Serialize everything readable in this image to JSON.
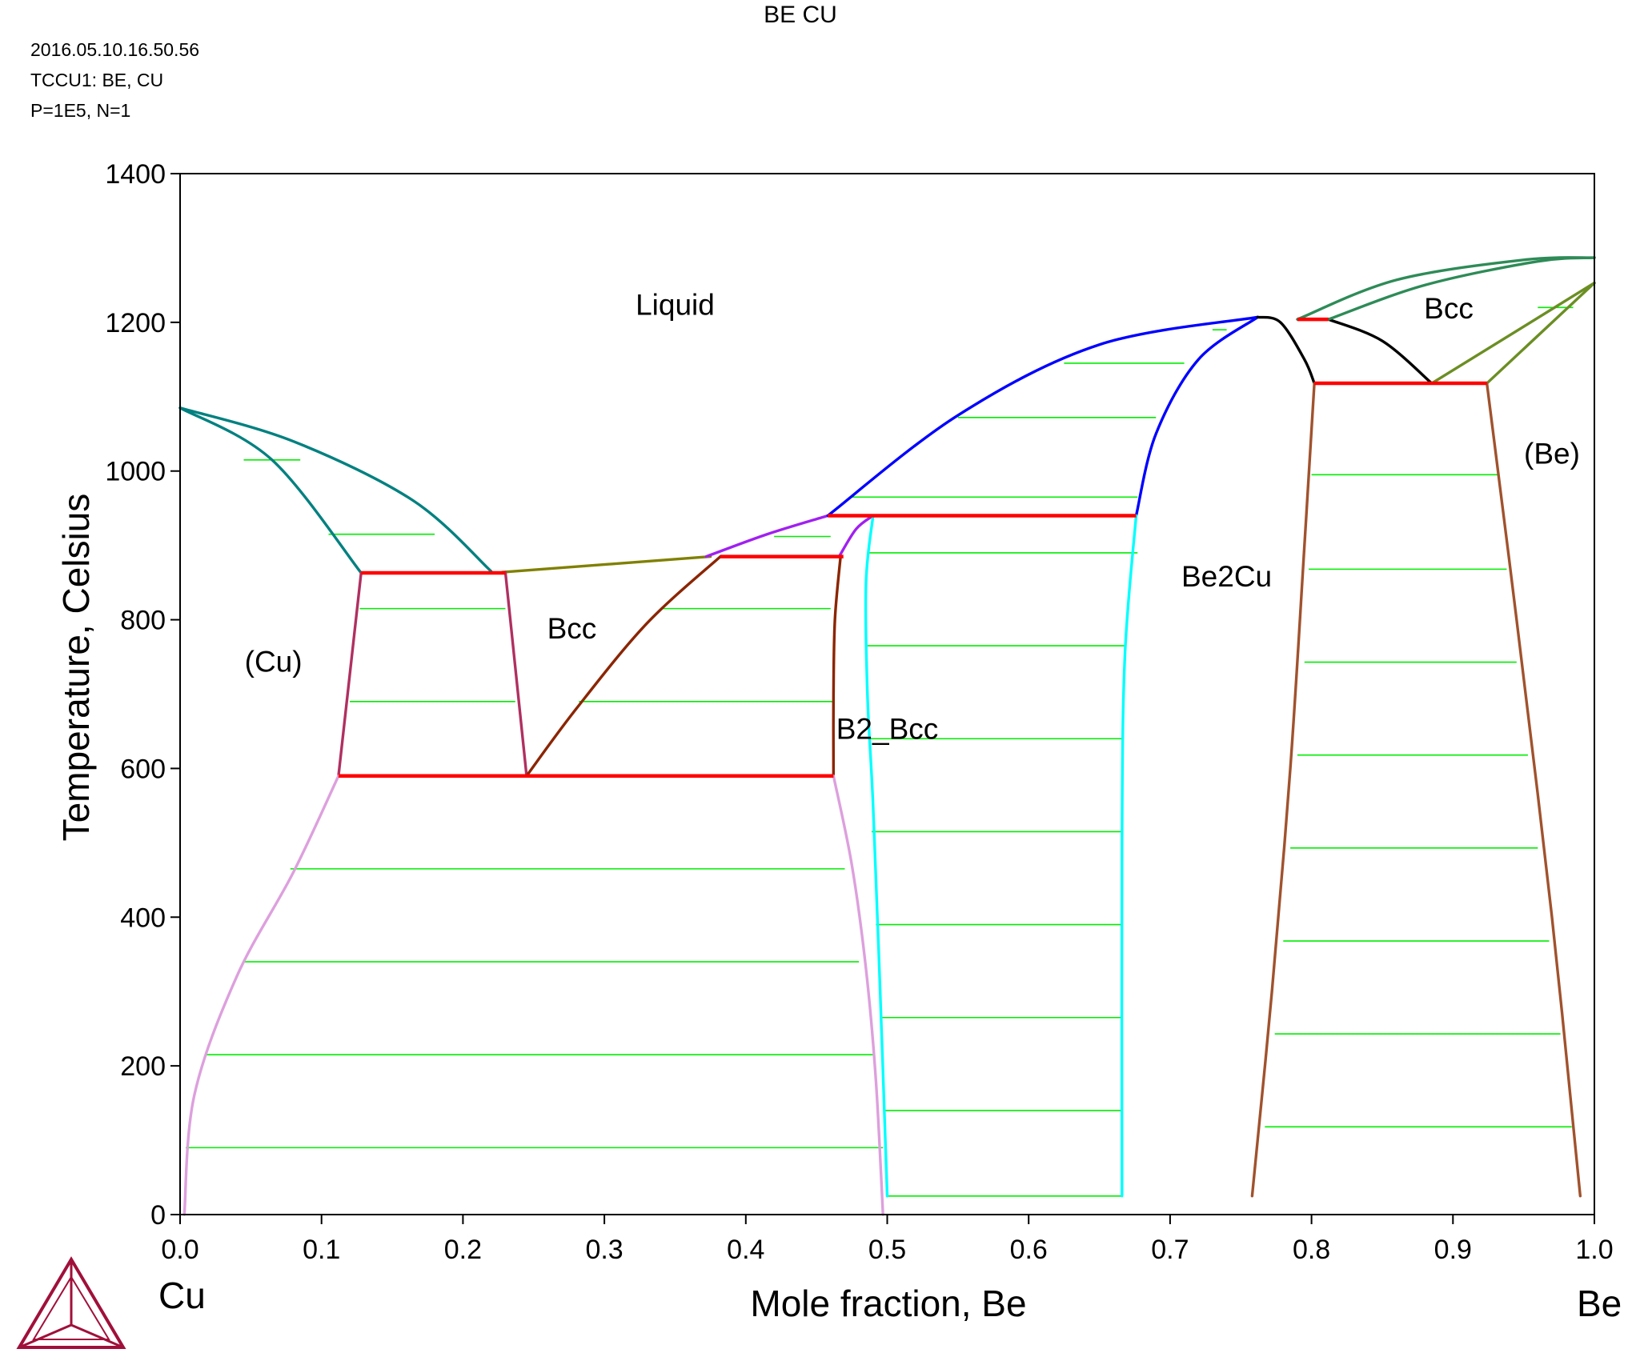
{
  "header": {
    "title": "BE CU",
    "meta_lines": [
      "2016.05.10.16.50.56",
      "TCCU1: BE, CU",
      "P=1E5, N=1"
    ]
  },
  "chart_data": {
    "type": "line",
    "title": "BE CU",
    "xlabel": "Mole fraction, Be",
    "ylabel": "Temperature, Celsius",
    "xlim": [
      0,
      1
    ],
    "ylim": [
      0,
      1400
    ],
    "xticks": [
      0.0,
      0.1,
      0.2,
      0.3,
      0.4,
      0.5,
      0.6,
      0.7,
      0.8,
      0.9,
      1.0
    ],
    "xtick_labels": [
      "0.0",
      "0.1",
      "0.2",
      "0.3",
      "0.4",
      "0.5",
      "0.6",
      "0.7",
      "0.8",
      "0.9",
      "1.0"
    ],
    "yticks": [
      0,
      200,
      400,
      600,
      800,
      1000,
      1200,
      1400
    ],
    "ytick_labels": [
      "0",
      "200",
      "400",
      "600",
      "800",
      "1000",
      "1200",
      "1400"
    ],
    "x_end_labels": {
      "left": "Cu",
      "right": "Be"
    },
    "grid": false,
    "region_labels": [
      {
        "text": "Liquid",
        "x": 0.35,
        "y": 1210
      },
      {
        "text": "(Cu)",
        "x": 0.066,
        "y": 730
      },
      {
        "text": "Bcc",
        "x": 0.277,
        "y": 775
      },
      {
        "text": "B2_Bcc",
        "x": 0.5,
        "y": 640
      },
      {
        "text": "Be2Cu",
        "x": 0.74,
        "y": 845
      },
      {
        "text": "Bcc",
        "x": 0.897,
        "y": 1205
      },
      {
        "text": "(Be)",
        "x": 0.97,
        "y": 1010
      }
    ],
    "curves": [
      {
        "color": "#008080",
        "points": [
          [
            0,
            1085
          ],
          [
            0.065,
            1015
          ],
          [
            0.128,
            863
          ]
        ]
      },
      {
        "color": "#008080",
        "points": [
          [
            0,
            1085
          ],
          [
            0.08,
            1040
          ],
          [
            0.165,
            960
          ],
          [
            0.22,
            865
          ]
        ]
      },
      {
        "color": "#808000",
        "points": [
          [
            0.228,
            864
          ],
          [
            0.375,
            885
          ]
        ]
      },
      {
        "color": "#B03060",
        "points": [
          [
            0.128,
            863
          ],
          [
            0.112,
            590
          ]
        ]
      },
      {
        "color": "#B03060",
        "points": [
          [
            0.23,
            864
          ],
          [
            0.245,
            590
          ]
        ]
      },
      {
        "color": "#DDA0DD",
        "points": [
          [
            0.112,
            590
          ],
          [
            0.08,
            460
          ],
          [
            0.04,
            320
          ],
          [
            0.01,
            160
          ],
          [
            0.003,
            0
          ]
        ]
      },
      {
        "color": "#8B2500",
        "points": [
          [
            0.245,
            590
          ],
          [
            0.28,
            680
          ],
          [
            0.33,
            795
          ],
          [
            0.382,
            885
          ]
        ]
      },
      {
        "color": "#A020F0",
        "points": [
          [
            0.372,
            885
          ],
          [
            0.415,
            915
          ],
          [
            0.458,
            940
          ]
        ]
      },
      {
        "color": "#A020F0",
        "points": [
          [
            0.466,
            885
          ],
          [
            0.478,
            922
          ],
          [
            0.49,
            940
          ]
        ]
      },
      {
        "color": "#8B2500",
        "points": [
          [
            0.467,
            885
          ],
          [
            0.463,
            800
          ],
          [
            0.462,
            700
          ],
          [
            0.462,
            590
          ]
        ]
      },
      {
        "color": "#DDA0DD",
        "points": [
          [
            0.462,
            590
          ],
          [
            0.475,
            470
          ],
          [
            0.485,
            330
          ],
          [
            0.492,
            180
          ],
          [
            0.497,
            0
          ]
        ]
      },
      {
        "color": "#00FFFF",
        "points": [
          [
            0.49,
            940
          ],
          [
            0.485,
            850
          ],
          [
            0.486,
            700
          ],
          [
            0.49,
            550
          ],
          [
            0.495,
            300
          ],
          [
            0.5,
            25
          ]
        ]
      },
      {
        "color": "#0000FF",
        "points": [
          [
            0.458,
            940
          ],
          [
            0.55,
            1075
          ],
          [
            0.65,
            1170
          ],
          [
            0.762,
            1207
          ]
        ]
      },
      {
        "color": "#0000FF",
        "points": [
          [
            0.676,
            940
          ],
          [
            0.69,
            1050
          ],
          [
            0.72,
            1150
          ],
          [
            0.762,
            1207
          ]
        ]
      },
      {
        "color": "#00FFFF",
        "points": [
          [
            0.676,
            940
          ],
          [
            0.668,
            750
          ],
          [
            0.666,
            500
          ],
          [
            0.666,
            25
          ]
        ]
      },
      {
        "color": "#000000",
        "points": [
          [
            0.762,
            1207
          ],
          [
            0.778,
            1200
          ],
          [
            0.795,
            1150
          ],
          [
            0.802,
            1118
          ]
        ]
      },
      {
        "color": "#000000",
        "points": [
          [
            0.812,
            1204
          ],
          [
            0.85,
            1175
          ],
          [
            0.885,
            1118
          ]
        ]
      },
      {
        "color": "#2E8B57",
        "points": [
          [
            0.79,
            1204
          ],
          [
            0.86,
            1257
          ],
          [
            0.95,
            1284
          ],
          [
            1.0,
            1287
          ]
        ]
      },
      {
        "color": "#2E8B57",
        "points": [
          [
            0.812,
            1204
          ],
          [
            0.88,
            1250
          ],
          [
            0.96,
            1282
          ],
          [
            1.0,
            1287
          ]
        ]
      },
      {
        "color": "#6B8E23",
        "points": [
          [
            0.885,
            1118
          ],
          [
            1.0,
            1253
          ]
        ]
      },
      {
        "color": "#6B8E23",
        "points": [
          [
            0.924,
            1118
          ],
          [
            1.0,
            1253
          ]
        ]
      },
      {
        "color": "#A0522D",
        "points": [
          [
            0.802,
            1118
          ],
          [
            0.795,
            900
          ],
          [
            0.785,
            600
          ],
          [
            0.772,
            300
          ],
          [
            0.758,
            25
          ]
        ]
      },
      {
        "color": "#A0522D",
        "points": [
          [
            0.924,
            1118
          ],
          [
            0.945,
            800
          ],
          [
            0.97,
            400
          ],
          [
            0.99,
            25
          ]
        ]
      }
    ],
    "invariant_lines": [
      {
        "color": "#FF0000",
        "x": [
          0.128,
          0.23
        ],
        "y": 863
      },
      {
        "color": "#FF0000",
        "x": [
          0.112,
          0.462
        ],
        "y": 590
      },
      {
        "color": "#FF0000",
        "x": [
          0.382,
          0.469
        ],
        "y": 885
      },
      {
        "color": "#FF0000",
        "x": [
          0.458,
          0.676
        ],
        "y": 940
      },
      {
        "color": "#FF0000",
        "x": [
          0.79,
          0.812
        ],
        "y": 1204
      },
      {
        "color": "#FF0000",
        "x": [
          0.802,
          0.924
        ],
        "y": 1118
      }
    ],
    "tie_lines": [
      {
        "x": [
          0.045,
          0.085
        ],
        "y": 1015
      },
      {
        "x": [
          0.105,
          0.18
        ],
        "y": 915
      },
      {
        "x": [
          0.127,
          0.23
        ],
        "y": 815
      },
      {
        "x": [
          0.12,
          0.237
        ],
        "y": 690
      },
      {
        "x": [
          0.078,
          0.47
        ],
        "y": 465
      },
      {
        "x": [
          0.045,
          0.48
        ],
        "y": 340
      },
      {
        "x": [
          0.018,
          0.49
        ],
        "y": 215
      },
      {
        "x": [
          0.004,
          0.497
        ],
        "y": 90
      },
      {
        "x": [
          0.34,
          0.46
        ],
        "y": 815
      },
      {
        "x": [
          0.282,
          0.462
        ],
        "y": 690
      },
      {
        "x": [
          0.42,
          0.46
        ],
        "y": 912
      },
      {
        "x": [
          0.486,
          0.677
        ],
        "y": 890
      },
      {
        "x": [
          0.486,
          0.669
        ],
        "y": 765
      },
      {
        "x": [
          0.487,
          0.667
        ],
        "y": 640
      },
      {
        "x": [
          0.489,
          0.666
        ],
        "y": 515
      },
      {
        "x": [
          0.492,
          0.666
        ],
        "y": 390
      },
      {
        "x": [
          0.495,
          0.666
        ],
        "y": 265
      },
      {
        "x": [
          0.498,
          0.666
        ],
        "y": 140
      },
      {
        "x": [
          0.5,
          0.666
        ],
        "y": 25
      },
      {
        "x": [
          0.475,
          0.677
        ],
        "y": 965
      },
      {
        "x": [
          0.55,
          0.69
        ],
        "y": 1072
      },
      {
        "x": [
          0.625,
          0.71
        ],
        "y": 1145
      },
      {
        "x": [
          0.73,
          0.74
        ],
        "y": 1190
      },
      {
        "x": [
          0.8,
          0.932
        ],
        "y": 995
      },
      {
        "x": [
          0.798,
          0.938
        ],
        "y": 868
      },
      {
        "x": [
          0.795,
          0.945
        ],
        "y": 743
      },
      {
        "x": [
          0.79,
          0.953
        ],
        "y": 618
      },
      {
        "x": [
          0.785,
          0.96
        ],
        "y": 493
      },
      {
        "x": [
          0.78,
          0.968
        ],
        "y": 368
      },
      {
        "x": [
          0.774,
          0.976
        ],
        "y": 243
      },
      {
        "x": [
          0.767,
          0.984
        ],
        "y": 118
      },
      {
        "x": [
          0.96,
          0.985
        ],
        "y": 1220
      }
    ]
  }
}
